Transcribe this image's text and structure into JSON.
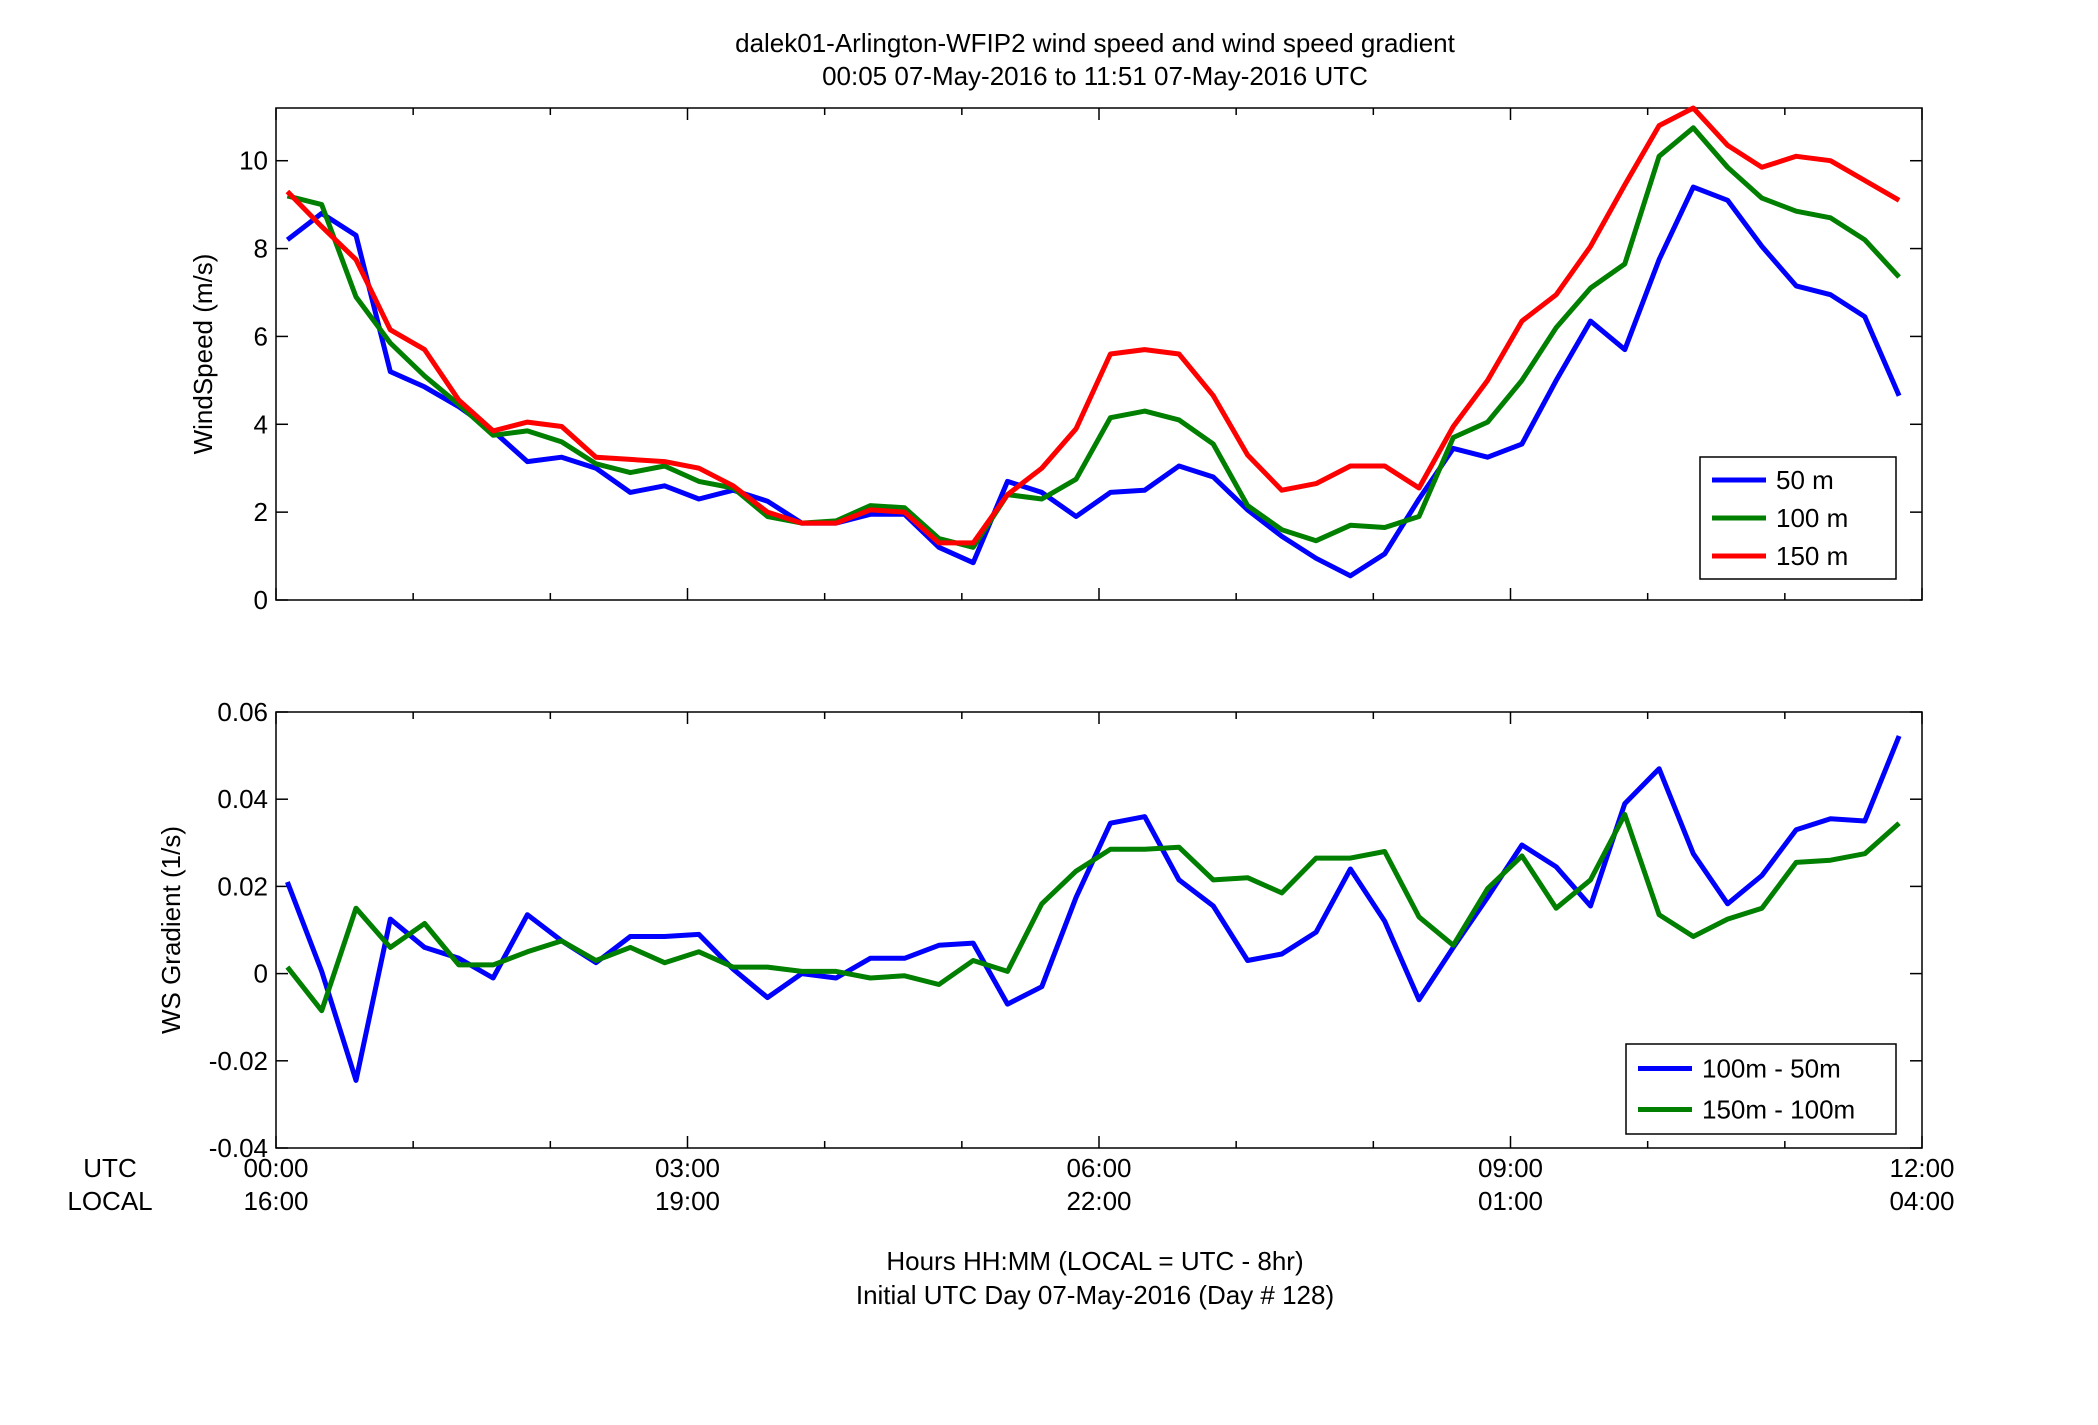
{
  "figure": {
    "title_line1": "dalek01-Arlington-WFIP2  wind speed and wind speed gradient",
    "title_line2": "00:05 07-May-2016 to 11:51 07-May-2016  UTC",
    "xlabel_line1": "Hours HH:MM  (LOCAL = UTC - 8hr)",
    "xlabel_line2": "Initial UTC Day 07-May-2016 (Day # 128)",
    "row_label_utc": "UTC",
    "row_label_local": "LOCAL",
    "x_tick_utc": [
      "00:00",
      "03:00",
      "06:00",
      "09:00",
      "12:00"
    ],
    "x_tick_local": [
      "16:00",
      "19:00",
      "22:00",
      "01:00",
      "04:00"
    ]
  },
  "colors": {
    "blue": "#0000ff",
    "green": "#007f00",
    "red": "#ff0000"
  },
  "chart_data": [
    {
      "type": "line",
      "xlim": [
        0,
        12
      ],
      "ylim": [
        0,
        11.2
      ],
      "yticks": [
        0,
        2,
        4,
        6,
        8,
        10
      ],
      "x_unit": "hours UTC",
      "ylabel": "WindSpeed (m/s)",
      "legend_position": "bottom-right",
      "grid": false,
      "x": [
        0.083,
        0.333,
        0.583,
        0.833,
        1.083,
        1.333,
        1.583,
        1.833,
        2.083,
        2.333,
        2.583,
        2.833,
        3.083,
        3.333,
        3.583,
        3.833,
        4.083,
        4.333,
        4.583,
        4.833,
        5.083,
        5.333,
        5.583,
        5.833,
        6.083,
        6.333,
        6.583,
        6.833,
        7.083,
        7.333,
        7.583,
        7.833,
        8.083,
        8.333,
        8.583,
        8.833,
        9.083,
        9.333,
        9.583,
        9.833,
        10.083,
        10.333,
        10.583,
        10.833,
        11.083,
        11.333,
        11.583,
        11.833
      ],
      "series": [
        {
          "name": "50 m",
          "color": "blue",
          "values": [
            8.2,
            8.8,
            8.3,
            5.2,
            4.85,
            4.4,
            3.85,
            3.15,
            3.25,
            3.0,
            2.45,
            2.6,
            2.3,
            2.5,
            2.25,
            1.75,
            1.75,
            1.95,
            1.95,
            1.2,
            0.85,
            2.7,
            2.45,
            1.9,
            2.45,
            2.5,
            3.05,
            2.8,
            2.05,
            1.45,
            0.95,
            0.55,
            1.05,
            2.3,
            3.45,
            3.25,
            3.55,
            5.0,
            6.35,
            5.7,
            7.75,
            9.4,
            9.1,
            8.05,
            7.15,
            6.95,
            6.45,
            4.65
          ]
        },
        {
          "name": "100 m",
          "color": "green",
          "values": [
            9.2,
            9.0,
            6.9,
            5.85,
            5.1,
            4.45,
            3.75,
            3.85,
            3.6,
            3.1,
            2.9,
            3.05,
            2.7,
            2.55,
            1.9,
            1.75,
            1.8,
            2.15,
            2.1,
            1.4,
            1.2,
            2.4,
            2.3,
            2.75,
            4.15,
            4.3,
            4.1,
            3.55,
            2.15,
            1.6,
            1.35,
            1.7,
            1.65,
            1.9,
            3.7,
            4.05,
            5.0,
            6.2,
            7.1,
            7.65,
            10.1,
            10.75,
            9.85,
            9.15,
            8.85,
            8.7,
            8.2,
            7.35
          ]
        },
        {
          "name": "150 m",
          "color": "red",
          "values": [
            9.3,
            8.5,
            7.75,
            6.15,
            5.7,
            4.55,
            3.85,
            4.05,
            3.95,
            3.25,
            3.2,
            3.15,
            3.0,
            2.6,
            2.0,
            1.75,
            1.75,
            2.05,
            2.0,
            1.3,
            1.3,
            2.4,
            3.0,
            3.9,
            5.6,
            5.7,
            5.6,
            4.65,
            3.3,
            2.5,
            2.65,
            3.05,
            3.05,
            2.55,
            3.95,
            5.0,
            6.35,
            6.95,
            8.05,
            9.45,
            10.8,
            11.2,
            10.35,
            9.85,
            10.1,
            10.0,
            9.55,
            9.1
          ]
        }
      ]
    },
    {
      "type": "line",
      "xlim": [
        0,
        12
      ],
      "ylim": [
        -0.04,
        0.06
      ],
      "yticks": [
        -0.04,
        -0.02,
        0,
        0.02,
        0.04,
        0.06
      ],
      "ytick_labels": [
        "-0.04",
        "-0.02",
        "0",
        "0.02",
        "0.04",
        "0.06"
      ],
      "x_unit": "hours UTC",
      "ylabel": "WS Gradient (1/s)",
      "legend_position": "bottom-right",
      "grid": false,
      "x": [
        0.083,
        0.333,
        0.583,
        0.833,
        1.083,
        1.333,
        1.583,
        1.833,
        2.083,
        2.333,
        2.583,
        2.833,
        3.083,
        3.333,
        3.583,
        3.833,
        4.083,
        4.333,
        4.583,
        4.833,
        5.083,
        5.333,
        5.583,
        5.833,
        6.083,
        6.333,
        6.583,
        6.833,
        7.083,
        7.333,
        7.583,
        7.833,
        8.083,
        8.333,
        8.583,
        8.833,
        9.083,
        9.333,
        9.583,
        9.833,
        10.083,
        10.333,
        10.583,
        10.833,
        11.083,
        11.333,
        11.583,
        11.833
      ],
      "series": [
        {
          "name": "100m - 50m",
          "color": "blue",
          "values": [
            0.021,
            0.0005,
            -0.0245,
            0.0125,
            0.006,
            0.0035,
            -0.001,
            0.0135,
            0.0075,
            0.0025,
            0.0085,
            0.0085,
            0.009,
            0.001,
            -0.0055,
            0.0,
            -0.001,
            0.0035,
            0.0035,
            0.0065,
            0.007,
            -0.007,
            -0.003,
            0.0175,
            0.0345,
            0.036,
            0.0215,
            0.0155,
            0.003,
            0.0045,
            0.0095,
            0.024,
            0.012,
            -0.006,
            0.006,
            0.0175,
            0.0295,
            0.0245,
            0.0155,
            0.039,
            0.047,
            0.0275,
            0.016,
            0.0225,
            0.033,
            0.0355,
            0.035,
            0.0545
          ]
        },
        {
          "name": "150m - 100m",
          "color": "green",
          "values": [
            0.0015,
            -0.0085,
            0.015,
            0.006,
            0.0115,
            0.002,
            0.002,
            0.005,
            0.0075,
            0.003,
            0.006,
            0.0025,
            0.005,
            0.0015,
            0.0015,
            0.0005,
            0.0005,
            -0.001,
            -0.0005,
            -0.0025,
            0.003,
            0.0005,
            0.016,
            0.0235,
            0.0285,
            0.0285,
            0.029,
            0.0215,
            0.022,
            0.0185,
            0.0265,
            0.0265,
            0.028,
            0.013,
            0.0065,
            0.0195,
            0.027,
            0.015,
            0.0215,
            0.0365,
            0.0135,
            0.0085,
            0.0125,
            0.015,
            0.0255,
            0.026,
            0.0275,
            0.0345
          ]
        }
      ]
    }
  ]
}
